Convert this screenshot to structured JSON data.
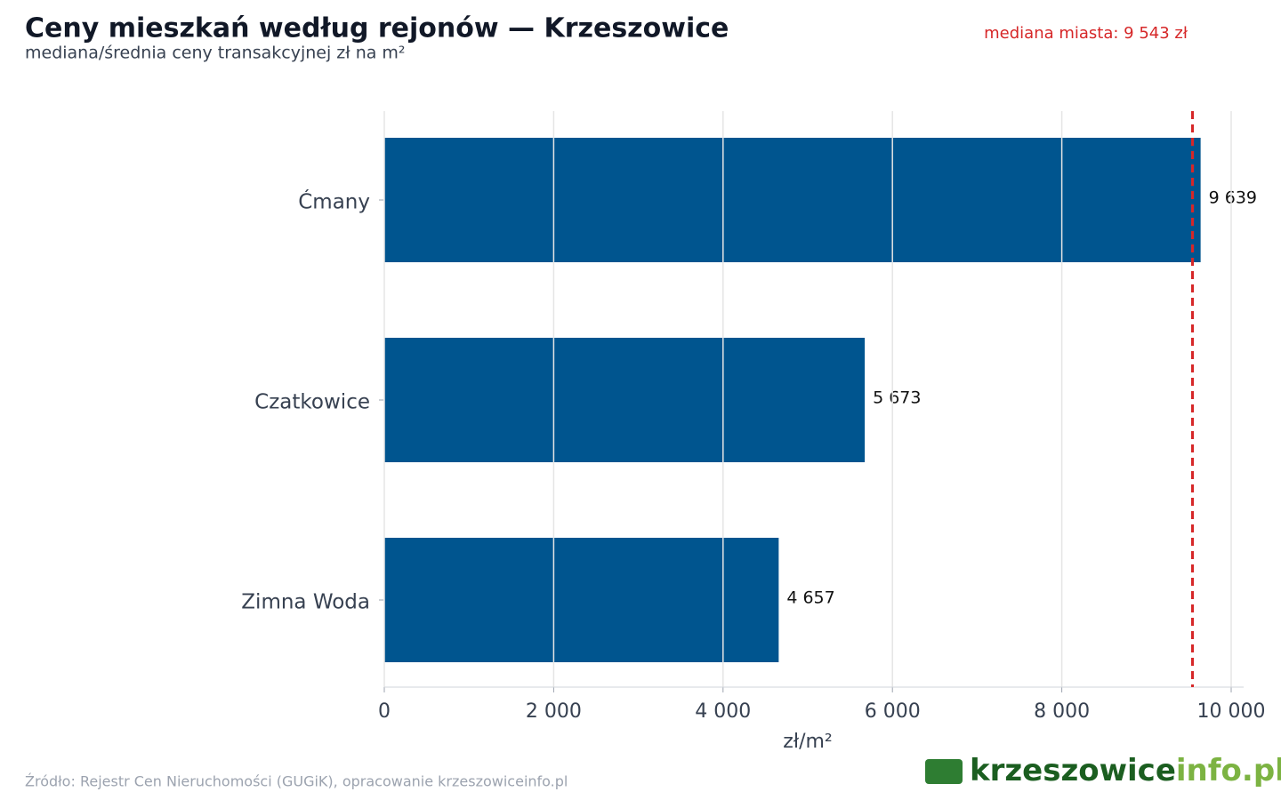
{
  "chart_data": {
    "type": "barh",
    "title": "Ceny mieszkań według rejonów — Krzeszowice",
    "subtitle": "mediana/średnia ceny transakcyjnej zł na m²",
    "categories": [
      "Ćmany",
      "Czatkowice",
      "Zimna Woda"
    ],
    "values": [
      9639,
      5673,
      4657
    ],
    "value_labels": [
      "9 639",
      "5 673",
      "4 657"
    ],
    "color": "#00558f",
    "xlim": [
      0,
      10000
    ],
    "xticks": [
      0,
      {
        "value": 2000,
        "label": "2 000"
      },
      {
        "value": 4000,
        "label": "4 000"
      },
      {
        "value": 6000,
        "label": "6 000"
      },
      {
        "value": 8000,
        "label": "8 000"
      },
      {
        "value": 10000,
        "label": "10 000"
      }
    ],
    "xlabel": "zł/m²",
    "grid": true,
    "reference_line": {
      "value": 9543,
      "label": "mediana miasta: 9 543 zł",
      "color": "#d62728"
    },
    "source": "Źródło: Rejestr Cen Nieruchomości (GUGiK), opracowanie krzeszowiceinfo.pl",
    "logo": [
      "krzeszowice",
      "info.pl"
    ]
  }
}
